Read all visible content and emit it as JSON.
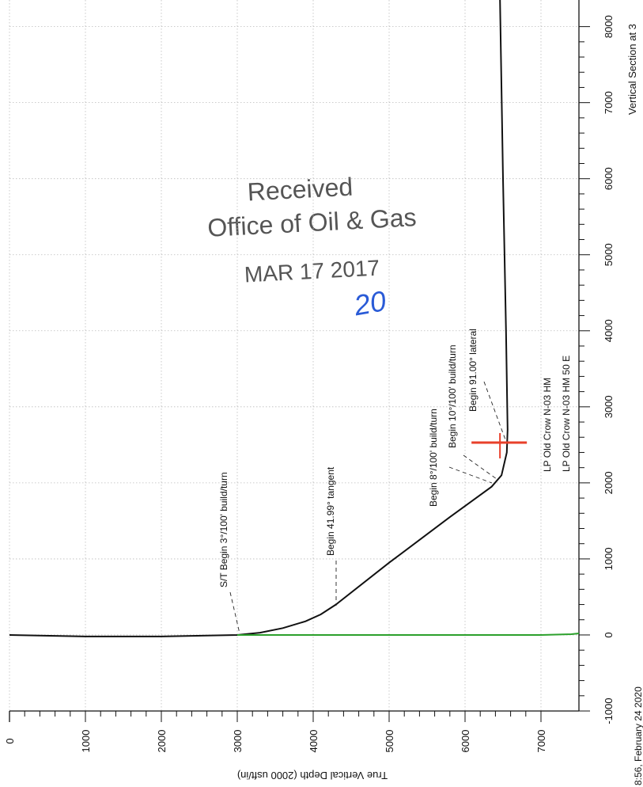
{
  "chart_data": {
    "type": "line",
    "xlabel": "True Vertical Depth (2000 usft/in)",
    "ylabel": "Vertical Section at 3",
    "xlim": [
      0,
      7500
    ],
    "ylim": [
      -1000,
      8350
    ],
    "xticks": [
      0,
      1000,
      2000,
      3000,
      4000,
      5000,
      6000,
      7000
    ],
    "yticks": [
      -1000,
      0,
      1000,
      2000,
      3000,
      4000,
      5000,
      6000,
      7000,
      8000
    ],
    "grid": true,
    "series": [
      {
        "color": "#111111",
        "x": [
          0,
          1000,
          2000,
          3000,
          3300,
          3600,
          3900,
          4100,
          4300,
          5000,
          5800,
          6350,
          6480,
          6550,
          6560,
          6540,
          6500,
          6460
        ],
        "values": [
          0,
          -20,
          -20,
          0,
          30,
          90,
          180,
          270,
          400,
          950,
          1550,
          1950,
          2100,
          2400,
          2700,
          4000,
          6000,
          8350
        ]
      },
      {
        "color": "#2ca02c",
        "x": [
          3000,
          5000,
          7000,
          7400,
          7500
        ],
        "values": [
          0,
          0,
          0,
          10,
          20
        ]
      }
    ],
    "target": {
      "x": 6460,
      "value": 2530,
      "color": "#e8402a"
    },
    "annotations": [
      "S/T Begin 3°/100' build/turn",
      "Begin 41.99° tangent",
      "Begin 8°/100' build/turn",
      "Begin 10°/100' build/turn",
      "Begin 91.00° lateral",
      "LP Old Crow N-03 HM",
      "LP Old Crow N-03 HM 50 E"
    ],
    "stamp": {
      "line1": "Received",
      "line2": "Office of Oil & Gas",
      "date": "MAR 17 2017",
      "handwritten": "20"
    },
    "timestamp": "8:56, February 24 2020"
  }
}
